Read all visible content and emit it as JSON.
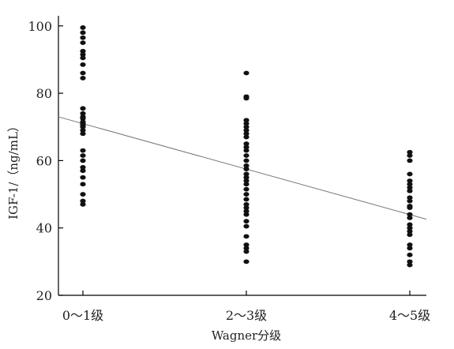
{
  "chart_data": {
    "type": "scatter",
    "title": "",
    "xlabel": "Wagner分级",
    "ylabel": "IGF-1/（ng/mL）",
    "categories": [
      "0～1级",
      "2～3级",
      "4～5级"
    ],
    "y_ticks": [
      20,
      40,
      60,
      80,
      100
    ],
    "ylim": [
      20,
      103
    ],
    "grid": false,
    "series": [
      {
        "category": "0～1级",
        "values": [
          99.5,
          98,
          96.5,
          95,
          92.5,
          91.5,
          90.5,
          88.5,
          86,
          84.5,
          75.5,
          74,
          73,
          72.5,
          71.5,
          71,
          70.5,
          70,
          69,
          68,
          63,
          61.5,
          60,
          58,
          57,
          55,
          53,
          50,
          48,
          47
        ]
      },
      {
        "category": "2～3级",
        "values": [
          86,
          79,
          78.5,
          72,
          71,
          70,
          69,
          68,
          67,
          65,
          64,
          63,
          61.5,
          60,
          58.5,
          57.5,
          56,
          55,
          54,
          53,
          51.5,
          50,
          48.5,
          47,
          46,
          45,
          44,
          42,
          40.5,
          37.5,
          35,
          34,
          33,
          30
        ]
      },
      {
        "category": "4～5级",
        "values": [
          62.5,
          61.5,
          60,
          56,
          54,
          53,
          52,
          51,
          49,
          48,
          46.5,
          46,
          44,
          43,
          41,
          40,
          39,
          38,
          35,
          34,
          32,
          30,
          29
        ]
      }
    ],
    "trendline": {
      "y_at_left_edge": 73,
      "y_at_right_edge": 42.6
    }
  }
}
